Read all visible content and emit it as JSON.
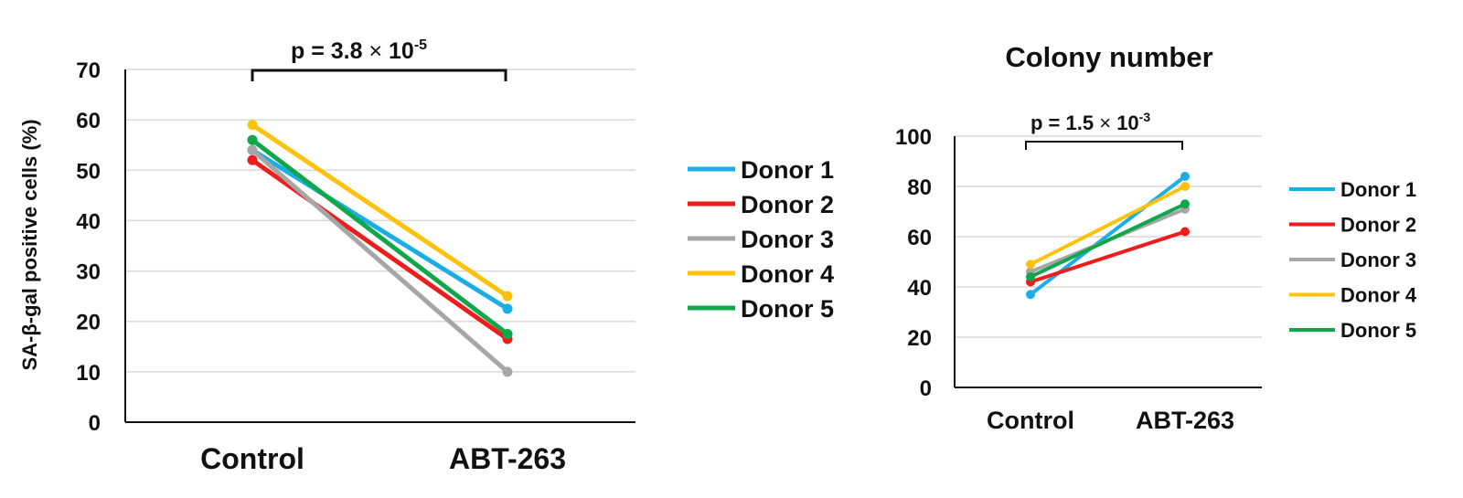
{
  "chart_data": [
    {
      "type": "line",
      "title": "",
      "xlabel": "",
      "ylabel": "SA-β-gal positive cells (%)",
      "ylim": [
        0,
        70
      ],
      "yticks": [
        0,
        10,
        20,
        30,
        40,
        50,
        60,
        70
      ],
      "categories": [
        "Control",
        "ABT-263"
      ],
      "annotation": {
        "prefix": "p = 3.8 ",
        "times": "×",
        "base": " 10",
        "exponent": "-5"
      },
      "legend": "right",
      "grid": true,
      "series": [
        {
          "name": "Donor 1",
          "color": "#1aaee8",
          "values": [
            54,
            22.5
          ]
        },
        {
          "name": "Donor 2",
          "color": "#ee1c1c",
          "values": [
            52,
            16.5
          ]
        },
        {
          "name": "Donor 3",
          "color": "#a6a6a6",
          "values": [
            54,
            10
          ]
        },
        {
          "name": "Donor 4",
          "color": "#fcc20c",
          "values": [
            59,
            25
          ]
        },
        {
          "name": "Donor 5",
          "color": "#12a64b",
          "values": [
            56,
            17.5
          ]
        }
      ]
    },
    {
      "type": "line",
      "title": "Colony number",
      "xlabel": "",
      "ylabel": "",
      "ylim": [
        0,
        100
      ],
      "yticks": [
        0,
        20,
        40,
        60,
        80,
        100
      ],
      "categories": [
        "Control",
        "ABT-263"
      ],
      "annotation": {
        "prefix": "p = 1.5 ",
        "times": "×",
        "base": " 10",
        "exponent": "-3"
      },
      "legend": "right",
      "grid": true,
      "series": [
        {
          "name": "Donor 1",
          "color": "#1aaee8",
          "values": [
            37,
            84
          ]
        },
        {
          "name": "Donor 2",
          "color": "#ee1c1c",
          "values": [
            42,
            62
          ]
        },
        {
          "name": "Donor 3",
          "color": "#a6a6a6",
          "values": [
            46,
            71
          ]
        },
        {
          "name": "Donor 4",
          "color": "#fcc20c",
          "values": [
            49,
            80
          ]
        },
        {
          "name": "Donor 5",
          "color": "#12a64b",
          "values": [
            44,
            73
          ]
        }
      ]
    }
  ]
}
